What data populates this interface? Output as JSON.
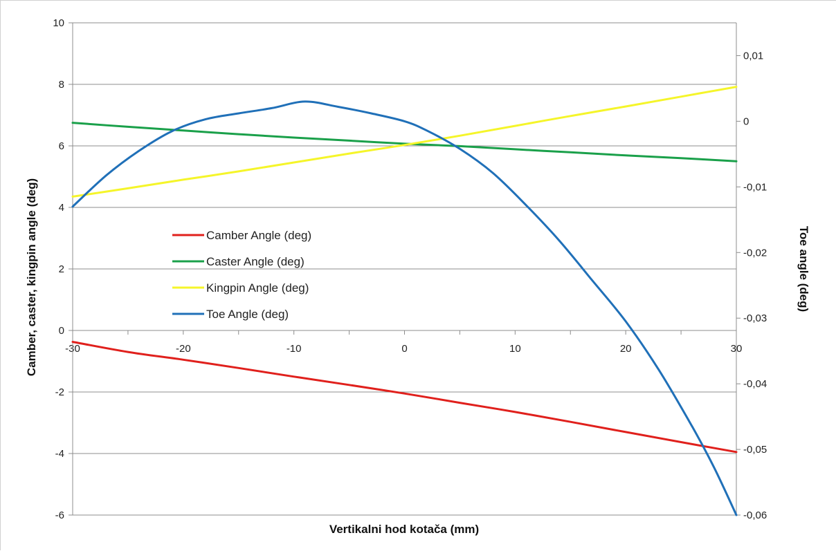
{
  "chart_data": {
    "type": "line",
    "title": "",
    "xlabel": "Vertikalni hod kotača (mm)",
    "ylabel": "Camber, caster, kingpin angle (deg)",
    "y2label": "Toe angle (deg)",
    "xlim": [
      -30,
      30
    ],
    "ylim": [
      -6,
      10
    ],
    "y2lim": [
      -0.06,
      0.015
    ],
    "x_ticks": [
      "-30",
      "-20",
      "-10",
      "0",
      "10",
      "20",
      "30"
    ],
    "x_tick_values": [
      -30,
      -20,
      -10,
      0,
      10,
      20,
      30
    ],
    "y_ticks": [
      "-6",
      "-4",
      "-2",
      "0",
      "2",
      "4",
      "6",
      "8",
      "10"
    ],
    "y_tick_values": [
      -6,
      -4,
      -2,
      0,
      2,
      4,
      6,
      8,
      10
    ],
    "y2_ticks": [
      "-0,06",
      "-0,05",
      "-0,04",
      "-0,03",
      "-0,02",
      "-0,01",
      "0",
      "0,01"
    ],
    "y2_tick_values": [
      -0.06,
      -0.05,
      -0.04,
      -0.03,
      -0.02,
      -0.01,
      0,
      0.01
    ],
    "grid": "horizontal",
    "legend_position": "center-left",
    "series": [
      {
        "name": "Camber Angle (deg)",
        "color": "#e0201c",
        "axis": "left",
        "x": [
          -30,
          -25,
          -20,
          -15,
          -10,
          -5,
          0,
          5,
          10,
          15,
          20,
          25,
          30
        ],
        "y": [
          -0.37,
          -0.7,
          -0.95,
          -1.22,
          -1.5,
          -1.77,
          -2.05,
          -2.35,
          -2.65,
          -2.97,
          -3.3,
          -3.63,
          -3.95
        ]
      },
      {
        "name": "Caster Angle (deg)",
        "color": "#1aa04a",
        "axis": "left",
        "x": [
          -30,
          -25,
          -20,
          -15,
          -10,
          -5,
          0,
          5,
          10,
          15,
          20,
          25,
          30
        ],
        "y": [
          6.75,
          6.62,
          6.5,
          6.38,
          6.27,
          6.17,
          6.07,
          5.99,
          5.89,
          5.79,
          5.69,
          5.6,
          5.5
        ]
      },
      {
        "name": "Kingpin Angle (deg)",
        "color": "#f5f52a",
        "axis": "left",
        "x": [
          -30,
          -25,
          -20,
          -15,
          -10,
          -5,
          0,
          5,
          10,
          15,
          20,
          25,
          30
        ],
        "y": [
          4.35,
          4.62,
          4.9,
          5.17,
          5.46,
          5.75,
          6.03,
          6.33,
          6.65,
          6.97,
          7.28,
          7.6,
          7.92
        ]
      },
      {
        "name": "Toe Angle (deg)",
        "color": "#2070b8",
        "axis": "right",
        "x": [
          -30,
          -27,
          -24,
          -21,
          -18,
          -15,
          -12,
          -9,
          -6,
          -3,
          0,
          2,
          5,
          8,
          11,
          14,
          17,
          20,
          23,
          26,
          28,
          30
        ],
        "y": [
          -0.013,
          -0.0083,
          -0.0045,
          -0.0015,
          0.0003,
          0.0012,
          0.002,
          0.003,
          0.0022,
          0.0012,
          0,
          -0.0014,
          -0.0042,
          -0.0079,
          -0.0128,
          -0.0182,
          -0.0243,
          -0.0305,
          -0.0379,
          -0.0465,
          -0.0528,
          -0.06
        ]
      }
    ]
  }
}
